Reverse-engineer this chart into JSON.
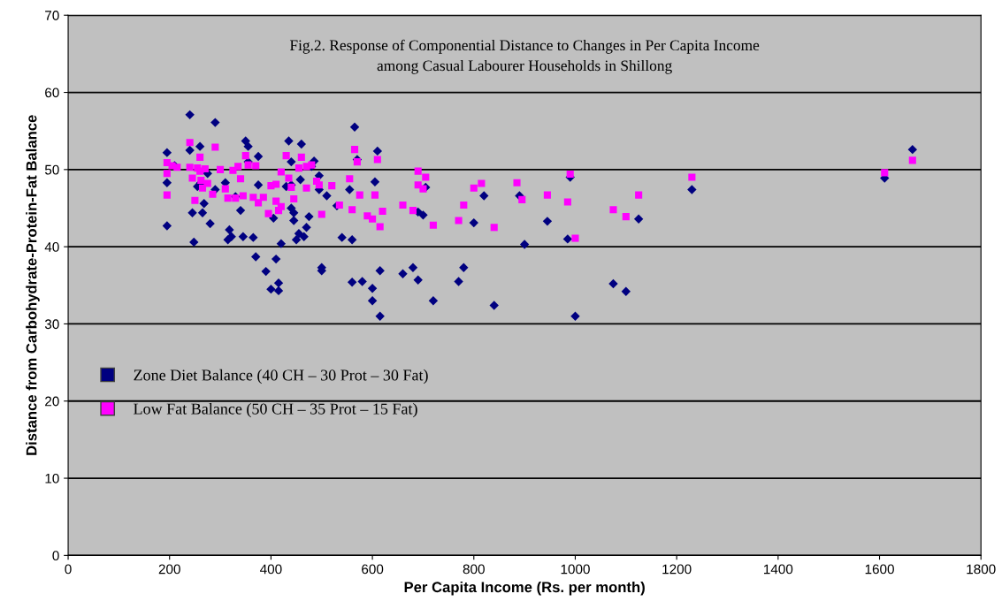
{
  "chart_data": {
    "type": "scatter",
    "title": "Fig.2. Response of Componential Distance to Changes in Per Capita Income\namong Casual Labourer Households in Shillong",
    "xlabel": "Per Capita Income (Rs. per month)",
    "ylabel": "Distance from Carbohydrate-Protein-Fat Balance",
    "xlim": [
      0,
      1800
    ],
    "xticks": [
      0,
      200,
      400,
      600,
      800,
      1000,
      1200,
      1400,
      1600,
      1800
    ],
    "ylim": [
      0,
      70
    ],
    "yticks": [
      0,
      10,
      20,
      30,
      40,
      50,
      60,
      70
    ],
    "grid": "y",
    "legend": "left",
    "series": [
      {
        "name": "Zone Diet Balance (40 CH – 30 Prot – 30 Fat)",
        "color": "#000080",
        "marker": "diamond",
        "x": [
          195,
          195,
          195,
          210,
          240,
          240,
          245,
          248,
          255,
          260,
          262,
          265,
          268,
          275,
          280,
          290,
          290,
          310,
          315,
          318,
          322,
          330,
          340,
          345,
          350,
          355,
          355,
          365,
          370,
          375,
          375,
          390,
          400,
          405,
          410,
          415,
          415,
          420,
          430,
          435,
          440,
          440,
          440,
          445,
          445,
          450,
          455,
          458,
          460,
          465,
          470,
          475,
          480,
          485,
          495,
          495,
          500,
          500,
          510,
          530,
          540,
          555,
          560,
          560,
          565,
          570,
          580,
          600,
          600,
          605,
          610,
          615,
          615,
          660,
          680,
          690,
          690,
          700,
          705,
          720,
          770,
          780,
          800,
          820,
          840,
          890,
          900,
          945,
          985,
          990,
          1000,
          1075,
          1100,
          1125,
          1230,
          1610,
          1665
        ],
        "values": [
          52.2,
          48.3,
          42.7,
          50.5,
          57.1,
          52.5,
          44.4,
          40.6,
          47.8,
          53,
          48.3,
          44.4,
          45.6,
          49.5,
          43,
          56.1,
          47.4,
          48.3,
          40.9,
          42.2,
          41.3,
          46.5,
          44.7,
          41.3,
          53.7,
          53,
          51,
          41.2,
          38.7,
          51.7,
          48,
          36.8,
          34.5,
          43.7,
          38.4,
          34.3,
          35.3,
          40.4,
          47.8,
          53.7,
          51,
          48,
          45,
          44.4,
          43.4,
          40.9,
          41.7,
          48.7,
          53.3,
          41.3,
          42.5,
          43.9,
          50.4,
          51.1,
          49.2,
          47.4,
          37.3,
          36.9,
          46.6,
          45.3,
          41.2,
          47.4,
          35.4,
          40.9,
          55.5,
          51.3,
          35.5,
          34.6,
          33,
          48.4,
          52.4,
          31,
          36.9,
          36.5,
          37.3,
          44.5,
          35.7,
          44.1,
          47.7,
          33,
          35.5,
          37.3,
          43.1,
          46.6,
          32.4,
          46.6,
          40.3,
          43.3,
          41,
          49,
          31,
          35.2,
          34.2,
          43.6,
          47.4,
          48.9,
          52.6
        ]
      },
      {
        "name": "Low Fat Balance (50 CH – 35 Prot – 15 Fat)",
        "color": "#ff00ff",
        "marker": "square",
        "x": [
          195,
          195,
          195,
          205,
          215,
          240,
          240,
          245,
          250,
          255,
          260,
          260,
          262,
          265,
          270,
          275,
          285,
          290,
          300,
          310,
          315,
          325,
          330,
          335,
          340,
          345,
          350,
          355,
          365,
          370,
          375,
          385,
          395,
          400,
          410,
          410,
          415,
          420,
          420,
          430,
          435,
          440,
          445,
          455,
          460,
          470,
          470,
          480,
          490,
          495,
          500,
          520,
          535,
          555,
          560,
          565,
          570,
          575,
          590,
          600,
          605,
          610,
          615,
          620,
          660,
          680,
          690,
          690,
          700,
          705,
          720,
          770,
          780,
          800,
          815,
          840,
          885,
          895,
          945,
          985,
          990,
          1000,
          1075,
          1100,
          1125,
          1230,
          1610,
          1665
        ],
        "values": [
          50.9,
          49.5,
          46.7,
          50.5,
          50.3,
          53.5,
          50.3,
          48.9,
          46,
          50.2,
          51.6,
          49.8,
          48.6,
          47.6,
          50.1,
          48.2,
          46.8,
          52.9,
          50,
          47.5,
          46.3,
          49.9,
          46.3,
          50.4,
          48.8,
          46.6,
          51.8,
          50.6,
          46.4,
          50.5,
          45.7,
          46.4,
          44.3,
          47.9,
          48.1,
          45.9,
          44.7,
          45.2,
          49.7,
          51.8,
          48.9,
          47.7,
          46.2,
          50.2,
          51.6,
          47.6,
          50.4,
          50.6,
          48.5,
          48,
          44.2,
          47.9,
          45.4,
          48.8,
          44.8,
          52.6,
          51,
          46.7,
          44,
          43.6,
          46.7,
          51.3,
          42.6,
          44.6,
          45.4,
          44.7,
          49.8,
          48,
          47.5,
          49,
          42.8,
          43.4,
          45.4,
          47.6,
          48.2,
          42.5,
          48.3,
          46.1,
          46.7,
          45.8,
          49.4,
          41.1,
          44.8,
          43.9,
          46.7,
          49,
          49.6,
          51.2
        ]
      }
    ]
  }
}
